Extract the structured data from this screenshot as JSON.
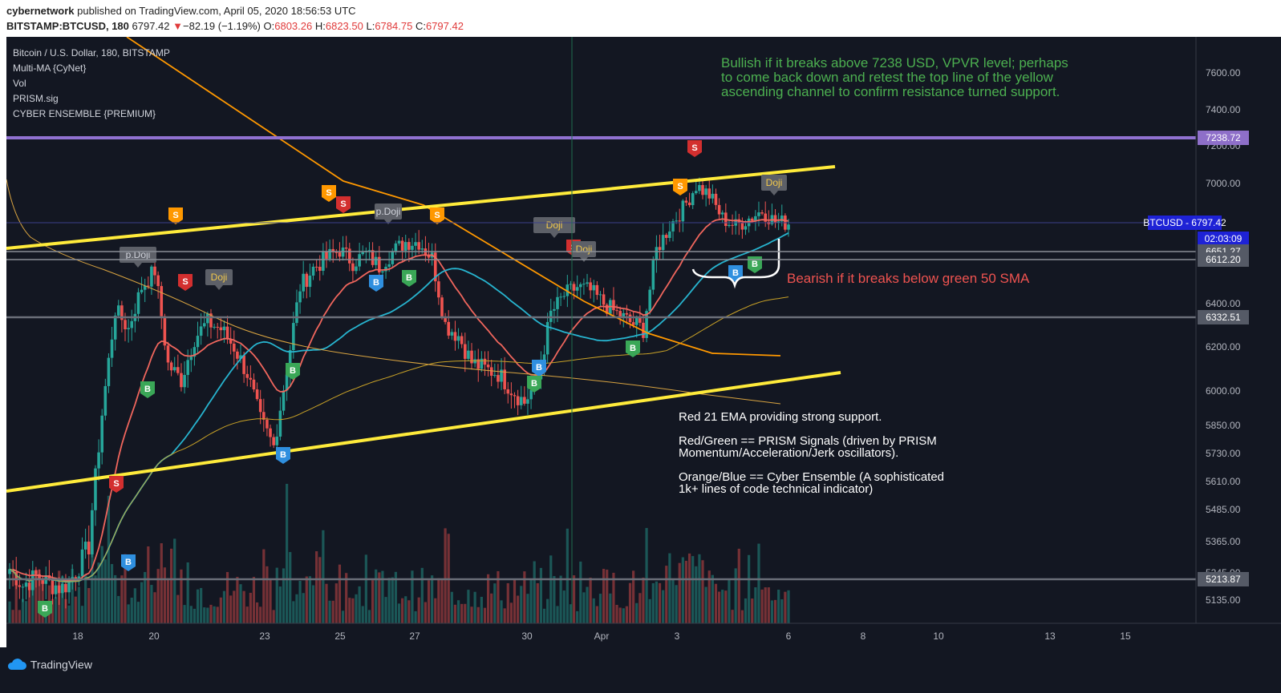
{
  "header": {
    "author": "cybernetwork",
    "published_text": "published on TradingView.com, April 05, 2020 18:56:53 UTC",
    "symbol": "BITSTAMP:BTCUSD, 180",
    "last": "6797.42",
    "arrow": "▼",
    "change": "−82.19 (−1.19%)",
    "o_label": "O:",
    "o_val": "6803.26",
    "h_label": "H:",
    "h_val": "6823.50",
    "l_label": "L:",
    "l_val": "6784.75",
    "c_label": "C:",
    "c_val": "6797.42"
  },
  "legend": [
    "Bitcoin / U.S. Dollar, 180, BITSTAMP",
    "Multi-MA {CyNet}",
    "Vol",
    "PRISM.sig",
    "CYBER ENSEMBLE {PREMIUM}"
  ],
  "annotations": {
    "bullish": [
      "Bullish if it breaks above 7238 USD, VPVR level; perhaps",
      "to come back down and retest the top line of the yellow",
      "ascending channel to confirm resistance turned support."
    ],
    "bearish": "Bearish if it breaks below green 50 SMA",
    "notes": [
      "Red 21 EMA providing strong support.",
      "",
      "Red/Green == PRISM Signals (driven by PRISM",
      "Momentum/Acceleration/Jerk oscillators).",
      "",
      "Orange/Blue == Cyber Ensemble (A sophisticated",
      "1k+ lines of code technical indicator)"
    ]
  },
  "price_tags": [
    {
      "label": "7238.72",
      "color": "#8e6fc9"
    },
    {
      "label": "BTCUSD - 6797.42",
      "color": "#1e22d6"
    },
    {
      "label": "02:03:09",
      "color": "#1e22d6"
    },
    {
      "label": "6651.27",
      "color": "#555a66"
    },
    {
      "label": "6612.20",
      "color": "#555a66"
    },
    {
      "label": "6332.51",
      "color": "#555a66"
    },
    {
      "label": "5213.87",
      "color": "#555a66"
    }
  ],
  "footer": {
    "brand": "TradingView"
  },
  "chart_data": {
    "type": "candlestick",
    "title": "Bitcoin / U.S. Dollar, 180, BITSTAMP",
    "y_ticks": [
      "7600.00",
      "7400.00",
      "7200.00",
      "7000.00",
      "6400.00",
      "6200.00",
      "6000.00",
      "5850.00",
      "5730.00",
      "5610.00",
      "5485.00",
      "5365.00",
      "5245.00",
      "5135.00"
    ],
    "x_ticks": [
      "18",
      "20",
      "23",
      "25",
      "27",
      "30",
      "Apr",
      "3",
      "6",
      "8",
      "10",
      "13",
      "15"
    ],
    "ylim": [
      5100,
      7700
    ],
    "close_path": [
      [
        0,
        5260
      ],
      [
        4,
        5190
      ],
      [
        8,
        5230
      ],
      [
        12,
        5200
      ],
      [
        16,
        5180
      ],
      [
        20,
        5240
      ],
      [
        24,
        5350
      ],
      [
        28,
        5900
      ],
      [
        32,
        6370
      ],
      [
        36,
        6280
      ],
      [
        40,
        6480
      ],
      [
        44,
        6560
      ],
      [
        48,
        6120
      ],
      [
        52,
        6050
      ],
      [
        56,
        6240
      ],
      [
        60,
        6310
      ],
      [
        64,
        6280
      ],
      [
        68,
        6200
      ],
      [
        72,
        6080
      ],
      [
        76,
        5870
      ],
      [
        80,
        5760
      ],
      [
        84,
        6100
      ],
      [
        88,
        6480
      ],
      [
        92,
        6570
      ],
      [
        96,
        6620
      ],
      [
        100,
        6660
      ],
      [
        104,
        6600
      ],
      [
        108,
        6640
      ],
      [
        112,
        6580
      ],
      [
        116,
        6650
      ],
      [
        120,
        6700
      ],
      [
        124,
        6700
      ],
      [
        128,
        6620
      ],
      [
        132,
        6300
      ],
      [
        136,
        6250
      ],
      [
        140,
        6130
      ],
      [
        144,
        6100
      ],
      [
        148,
        6080
      ],
      [
        152,
        6010
      ],
      [
        156,
        5950
      ],
      [
        160,
        6050
      ],
      [
        164,
        6350
      ],
      [
        168,
        6440
      ],
      [
        172,
        6480
      ],
      [
        176,
        6460
      ],
      [
        180,
        6400
      ],
      [
        184,
        6350
      ],
      [
        188,
        6310
      ],
      [
        192,
        6280
      ],
      [
        196,
        6660
      ],
      [
        200,
        6780
      ],
      [
        204,
        6870
      ],
      [
        208,
        6990
      ],
      [
        212,
        6940
      ],
      [
        216,
        6820
      ],
      [
        220,
        6780
      ],
      [
        224,
        6820
      ],
      [
        228,
        6860
      ],
      [
        232,
        6800
      ],
      [
        236,
        6797
      ]
    ],
    "signals": {
      "sell": [
        "S",
        "S",
        "S",
        "S",
        "S",
        "S",
        "S",
        "S",
        "S"
      ],
      "buy": [
        "B",
        "B",
        "B",
        "B",
        "B",
        "B",
        "B",
        "B",
        "B",
        "B",
        "B",
        "B"
      ],
      "doji": [
        "p.Doji",
        "Doji",
        "Doji",
        "p.Doji",
        "Doji",
        "Doji"
      ]
    },
    "key_levels": {
      "vpvr": 7238.72,
      "last": 6797.42
    }
  },
  "colors": {
    "bg": "#131722",
    "up": "#26a69a",
    "down": "#ef5350",
    "ema21": "#f0665d",
    "sma50": "#27b4cf",
    "yellow": "#ffeb3b",
    "orange": "#ff9800",
    "purple": "#9071d1",
    "text": "#b2b5be"
  }
}
